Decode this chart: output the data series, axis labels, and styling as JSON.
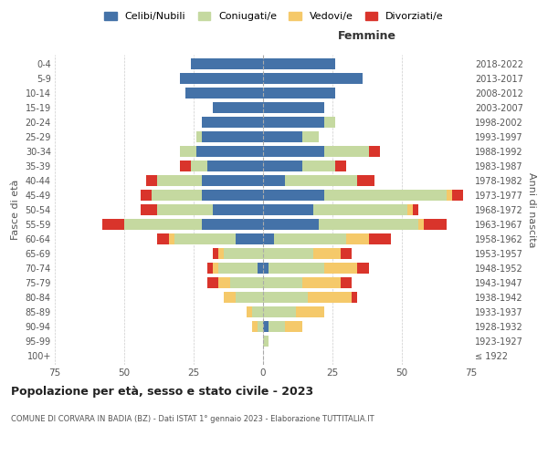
{
  "age_groups": [
    "100+",
    "95-99",
    "90-94",
    "85-89",
    "80-84",
    "75-79",
    "70-74",
    "65-69",
    "60-64",
    "55-59",
    "50-54",
    "45-49",
    "40-44",
    "35-39",
    "30-34",
    "25-29",
    "20-24",
    "15-19",
    "10-14",
    "5-9",
    "0-4"
  ],
  "birth_years": [
    "≤ 1922",
    "1923-1927",
    "1928-1932",
    "1933-1937",
    "1938-1942",
    "1943-1947",
    "1948-1952",
    "1953-1957",
    "1958-1962",
    "1963-1967",
    "1968-1972",
    "1973-1977",
    "1978-1982",
    "1983-1987",
    "1988-1992",
    "1993-1997",
    "1998-2002",
    "2003-2007",
    "2008-2012",
    "2013-2017",
    "2018-2022"
  ],
  "male": {
    "celibi": [
      0,
      0,
      0,
      0,
      0,
      0,
      2,
      0,
      10,
      22,
      18,
      22,
      22,
      20,
      24,
      22,
      22,
      18,
      28,
      30,
      26
    ],
    "coniugati": [
      0,
      0,
      2,
      4,
      10,
      12,
      14,
      14,
      22,
      28,
      20,
      18,
      16,
      6,
      6,
      2,
      0,
      0,
      0,
      0,
      0
    ],
    "vedovi": [
      0,
      0,
      2,
      2,
      4,
      4,
      2,
      2,
      2,
      0,
      0,
      0,
      0,
      0,
      0,
      0,
      0,
      0,
      0,
      0,
      0
    ],
    "divorziati": [
      0,
      0,
      0,
      0,
      0,
      4,
      2,
      2,
      4,
      8,
      6,
      4,
      4,
      4,
      0,
      0,
      0,
      0,
      0,
      0,
      0
    ]
  },
  "female": {
    "nubili": [
      0,
      0,
      2,
      0,
      0,
      0,
      2,
      0,
      4,
      20,
      18,
      22,
      8,
      14,
      22,
      14,
      22,
      22,
      26,
      36,
      26
    ],
    "coniugate": [
      0,
      2,
      6,
      12,
      16,
      14,
      20,
      18,
      26,
      36,
      34,
      44,
      26,
      12,
      16,
      6,
      4,
      0,
      0,
      0,
      0
    ],
    "vedove": [
      0,
      0,
      6,
      10,
      16,
      14,
      12,
      10,
      8,
      2,
      2,
      2,
      0,
      0,
      0,
      0,
      0,
      0,
      0,
      0,
      0
    ],
    "divorziate": [
      0,
      0,
      0,
      0,
      2,
      4,
      4,
      4,
      8,
      8,
      2,
      4,
      6,
      4,
      4,
      0,
      0,
      0,
      0,
      0,
      0
    ]
  },
  "colors": {
    "celibi_nubili": "#4472a8",
    "coniugati": "#c5d9a0",
    "vedovi": "#f5c96a",
    "divorziati": "#d9342b"
  },
  "title": "Popolazione per età, sesso e stato civile - 2023",
  "subtitle": "COMUNE DI CORVARA IN BADIA (BZ) - Dati ISTAT 1° gennaio 2023 - Elaborazione TUTTITALIA.IT",
  "xlabel_right": "Femmine",
  "ylabel_left": "Fasce di età",
  "ylabel_right": "Anni di nascita",
  "xlim": 75,
  "legend_labels": [
    "Celibi/Nubili",
    "Coniugati/e",
    "Vedovi/e",
    "Divorziati/e"
  ],
  "background_color": "#ffffff",
  "grid_color": "#cccccc"
}
